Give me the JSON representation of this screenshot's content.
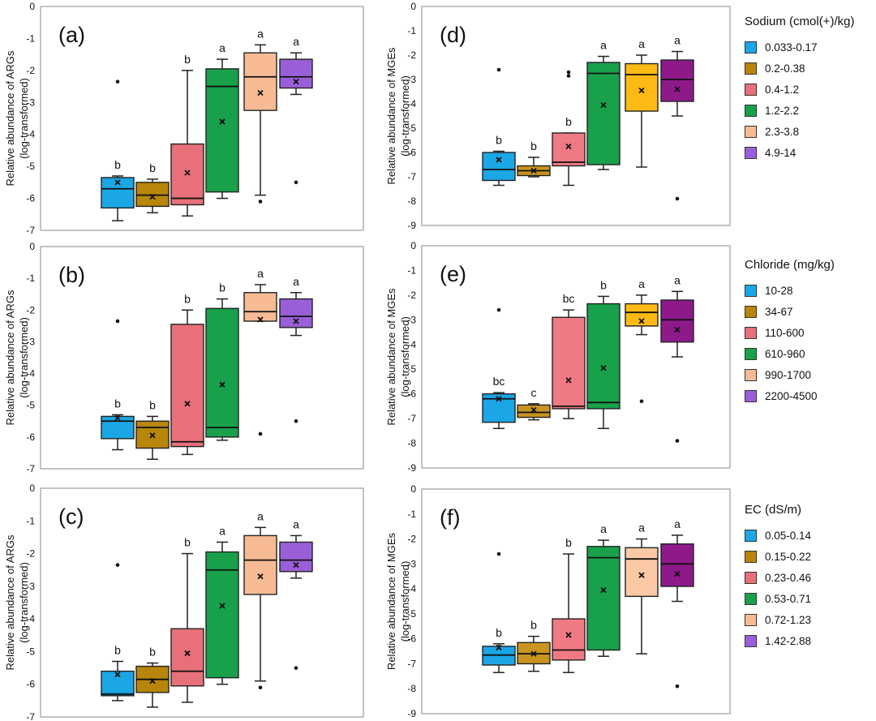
{
  "chart_data": [
    {
      "type": "box",
      "panel_label": "(a)",
      "ylabel": [
        "Relative abundance of ARGs",
        "(log-transformed)"
      ],
      "ylim": [
        -7,
        0
      ],
      "yticks": [
        0,
        -1,
        -2,
        -3,
        -4,
        -5,
        -6,
        -7
      ],
      "colors": [
        "#1BA6E5",
        "#B8860B",
        "#E8707A",
        "#19A04A",
        "#F6BB94",
        "#9A5FD8"
      ],
      "boxes": [
        {
          "whislo": -6.7,
          "q1": -6.3,
          "med": -5.7,
          "q3": -5.35,
          "whishi": -5.3,
          "mean": -5.5,
          "fliers": [
            -2.35
          ],
          "letter": "b"
        },
        {
          "whislo": -6.45,
          "q1": -6.25,
          "med": -5.9,
          "q3": -5.5,
          "whishi": -5.4,
          "mean": -5.95,
          "fliers": [],
          "letter": "b"
        },
        {
          "whislo": -6.55,
          "q1": -6.2,
          "med": -6.0,
          "q3": -4.3,
          "whishi": -2.0,
          "mean": -5.2,
          "fliers": [],
          "letter": "b"
        },
        {
          "whislo": -6.0,
          "q1": -5.8,
          "med": -2.5,
          "q3": -1.95,
          "whishi": -1.65,
          "mean": -3.6,
          "fliers": [],
          "letter": "a"
        },
        {
          "whislo": -5.9,
          "q1": -3.25,
          "med": -2.2,
          "q3": -1.45,
          "whishi": -1.2,
          "mean": -2.7,
          "fliers": [
            -6.1
          ],
          "letter": "a"
        },
        {
          "whislo": -2.75,
          "q1": -2.55,
          "med": -2.2,
          "q3": -1.65,
          "whishi": -1.45,
          "mean": -2.35,
          "fliers": [
            -5.5
          ],
          "letter": "a"
        }
      ]
    },
    {
      "type": "box",
      "panel_label": "(b)",
      "ylabel": [
        "Relative abundance of ARGs",
        "(log-transformed)"
      ],
      "ylim": [
        -7,
        0
      ],
      "yticks": [
        0,
        -1,
        -2,
        -3,
        -4,
        -5,
        -6,
        -7
      ],
      "colors": [
        "#1BA6E5",
        "#B8860B",
        "#E8707A",
        "#19A04A",
        "#F6BB94",
        "#9A5FD8"
      ],
      "boxes": [
        {
          "whislo": -6.4,
          "q1": -6.05,
          "med": -5.5,
          "q3": -5.35,
          "whishi": -5.3,
          "mean": -5.4,
          "fliers": [
            -2.35
          ],
          "letter": "b"
        },
        {
          "whislo": -6.7,
          "q1": -6.35,
          "med": -5.7,
          "q3": -5.5,
          "whishi": -5.35,
          "mean": -5.95,
          "fliers": [],
          "letter": "b"
        },
        {
          "whislo": -6.55,
          "q1": -6.3,
          "med": -6.15,
          "q3": -2.45,
          "whishi": -2.0,
          "mean": -4.95,
          "fliers": [],
          "letter": "b"
        },
        {
          "whislo": -6.1,
          "q1": -6.0,
          "med": -5.7,
          "q3": -1.95,
          "whishi": -1.65,
          "mean": -4.35,
          "fliers": [],
          "letter": "b"
        },
        {
          "whislo": -2.35,
          "q1": -2.35,
          "med": -2.05,
          "q3": -1.45,
          "whishi": -1.2,
          "mean": -2.3,
          "fliers": [
            -5.9
          ],
          "letter": "a"
        },
        {
          "whislo": -2.8,
          "q1": -2.55,
          "med": -2.2,
          "q3": -1.65,
          "whishi": -1.45,
          "mean": -2.35,
          "fliers": [
            -5.5
          ],
          "letter": "a"
        }
      ]
    },
    {
      "type": "box",
      "panel_label": "(c)",
      "ylabel": [
        "Relative abundance of ARGs",
        "(log-transformed)"
      ],
      "ylim": [
        -7,
        0
      ],
      "yticks": [
        0,
        -1,
        -2,
        -3,
        -4,
        -5,
        -6,
        -7
      ],
      "colors": [
        "#1BA6E5",
        "#B8860B",
        "#E8707A",
        "#19A04A",
        "#F6BB94",
        "#9A5FD8"
      ],
      "boxes": [
        {
          "whislo": -6.5,
          "q1": -6.35,
          "med": -6.3,
          "q3": -5.6,
          "whishi": -5.3,
          "mean": -5.7,
          "fliers": [
            -2.35
          ],
          "letter": "b"
        },
        {
          "whislo": -6.7,
          "q1": -6.25,
          "med": -5.85,
          "q3": -5.45,
          "whishi": -5.35,
          "mean": -5.9,
          "fliers": [],
          "letter": "b"
        },
        {
          "whislo": -6.55,
          "q1": -6.05,
          "med": -5.6,
          "q3": -4.3,
          "whishi": -2.0,
          "mean": -5.05,
          "fliers": [],
          "letter": "b"
        },
        {
          "whislo": -6.0,
          "q1": -5.8,
          "med": -2.5,
          "q3": -1.95,
          "whishi": -1.65,
          "mean": -3.6,
          "fliers": [],
          "letter": "a"
        },
        {
          "whislo": -5.9,
          "q1": -3.25,
          "med": -2.2,
          "q3": -1.45,
          "whishi": -1.2,
          "mean": -2.7,
          "fliers": [
            -6.1
          ],
          "letter": "a"
        },
        {
          "whislo": -2.75,
          "q1": -2.55,
          "med": -2.2,
          "q3": -1.65,
          "whishi": -1.45,
          "mean": -2.35,
          "fliers": [
            -5.5
          ],
          "letter": "a"
        }
      ]
    },
    {
      "type": "box",
      "panel_label": "(d)",
      "ylabel": [
        "Relative abundance of MGEs",
        "(log-transformed)"
      ],
      "ylim": [
        -9,
        0
      ],
      "yticks": [
        0,
        -1,
        -2,
        -3,
        -4,
        -5,
        -6,
        -7,
        -8,
        -9
      ],
      "colors": [
        "#1BA6E5",
        "#C9941F",
        "#F07A84",
        "#19A04A",
        "#FDBA15",
        "#8E1A8A"
      ],
      "boxes": [
        {
          "whislo": -7.35,
          "q1": -7.15,
          "med": -6.7,
          "q3": -6.0,
          "whishi": -5.95,
          "mean": -6.3,
          "fliers": [
            -2.6
          ],
          "letter": "b"
        },
        {
          "whislo": -7.0,
          "q1": -6.95,
          "med": -6.75,
          "q3": -6.55,
          "whishi": -6.2,
          "mean": -6.75,
          "fliers": [],
          "letter": "b"
        },
        {
          "whislo": -7.35,
          "q1": -6.55,
          "med": -6.4,
          "q3": -5.2,
          "whishi": -5.2,
          "mean": -5.75,
          "fliers": [
            -2.7,
            -2.85
          ],
          "letter": "b"
        },
        {
          "whislo": -6.7,
          "q1": -6.5,
          "med": -2.75,
          "q3": -2.3,
          "whishi": -2.05,
          "mean": -4.05,
          "fliers": [],
          "letter": "a"
        },
        {
          "whislo": -6.6,
          "q1": -4.3,
          "med": -2.8,
          "q3": -2.35,
          "whishi": -2.0,
          "mean": -3.45,
          "fliers": [],
          "letter": "a"
        },
        {
          "whislo": -4.5,
          "q1": -3.9,
          "med": -3.0,
          "q3": -2.2,
          "whishi": -1.85,
          "mean": -3.4,
          "fliers": [
            -7.9
          ],
          "letter": "a"
        }
      ]
    },
    {
      "type": "box",
      "panel_label": "(e)",
      "ylabel": [
        "Relative abundance of MGEs",
        "(log-transformed)"
      ],
      "ylim": [
        -9,
        0
      ],
      "yticks": [
        0,
        -1,
        -2,
        -3,
        -4,
        -5,
        -6,
        -7,
        -8,
        -9
      ],
      "colors": [
        "#1BA6E5",
        "#C9941F",
        "#F07A84",
        "#19A04A",
        "#FDBA15",
        "#8E1A8A"
      ],
      "boxes": [
        {
          "whislo": -7.4,
          "q1": -7.15,
          "med": -6.2,
          "q3": -6.0,
          "whishi": -5.95,
          "mean": -6.2,
          "fliers": [
            -2.6
          ],
          "letter": "bc"
        },
        {
          "whislo": -7.05,
          "q1": -6.95,
          "med": -6.75,
          "q3": -6.45,
          "whishi": -6.4,
          "mean": -6.65,
          "fliers": [],
          "letter": "c"
        },
        {
          "whislo": -7.0,
          "q1": -6.6,
          "med": -6.5,
          "q3": -2.9,
          "whishi": -2.6,
          "mean": -5.45,
          "fliers": [],
          "letter": "bc"
        },
        {
          "whislo": -7.4,
          "q1": -6.6,
          "med": -6.35,
          "q3": -2.35,
          "whishi": -2.05,
          "mean": -4.95,
          "fliers": [],
          "letter": "b"
        },
        {
          "whislo": -3.6,
          "q1": -3.25,
          "med": -2.7,
          "q3": -2.35,
          "whishi": -2.0,
          "mean": -3.05,
          "fliers": [
            -6.3
          ],
          "letter": "a"
        },
        {
          "whislo": -4.5,
          "q1": -3.9,
          "med": -3.0,
          "q3": -2.2,
          "whishi": -1.85,
          "mean": -3.4,
          "fliers": [
            -7.9
          ],
          "letter": "a"
        }
      ]
    },
    {
      "type": "box",
      "panel_label": "(f)",
      "ylabel": [
        "Relative abundance of MGEs",
        "(log-transformed)"
      ],
      "ylim": [
        -9,
        0
      ],
      "yticks": [
        0,
        -1,
        -2,
        -3,
        -4,
        -5,
        -6,
        -7,
        -8,
        -9
      ],
      "colors": [
        "#1BA6E5",
        "#C9941F",
        "#F07A84",
        "#19A04A",
        "#FBC9A6",
        "#8E1A8A"
      ],
      "boxes": [
        {
          "whislo": -7.35,
          "q1": -7.05,
          "med": -6.65,
          "q3": -6.3,
          "whishi": -6.2,
          "mean": -6.35,
          "fliers": [
            -2.6
          ],
          "letter": "b"
        },
        {
          "whislo": -7.3,
          "q1": -7.0,
          "med": -6.6,
          "q3": -6.15,
          "whishi": -5.9,
          "mean": -6.6,
          "fliers": [],
          "letter": "b"
        },
        {
          "whislo": -7.35,
          "q1": -6.85,
          "med": -6.45,
          "q3": -5.2,
          "whishi": -2.6,
          "mean": -5.85,
          "fliers": [],
          "letter": "b"
        },
        {
          "whislo": -6.7,
          "q1": -6.45,
          "med": -2.75,
          "q3": -2.3,
          "whishi": -2.05,
          "mean": -4.05,
          "fliers": [],
          "letter": "a"
        },
        {
          "whislo": -6.6,
          "q1": -4.3,
          "med": -2.8,
          "q3": -2.35,
          "whishi": -2.0,
          "mean": -3.45,
          "fliers": [],
          "letter": "a"
        },
        {
          "whislo": -4.5,
          "q1": -3.9,
          "med": -3.0,
          "q3": -2.2,
          "whishi": -1.85,
          "mean": -3.4,
          "fliers": [
            -7.9
          ],
          "letter": "a"
        }
      ]
    }
  ],
  "legends": [
    {
      "title": "Sodium (cmol(+)/kg)",
      "items": [
        {
          "label": "0.033-0.17",
          "color": "#1BA6E5"
        },
        {
          "label": "0.2-0.38",
          "color": "#B8860B"
        },
        {
          "label": "0.4-1.2",
          "color": "#E8707A"
        },
        {
          "label": "1.2-2.2",
          "color": "#19A04A"
        },
        {
          "label": "2.3-3.8",
          "color": "#F6BB94"
        },
        {
          "label": "4.9-14",
          "color": "#9A5FD8"
        }
      ]
    },
    {
      "title": "Chloride (mg/kg)",
      "items": [
        {
          "label": "10-28",
          "color": "#1BA6E5"
        },
        {
          "label": "34-67",
          "color": "#B8860B"
        },
        {
          "label": "110-600",
          "color": "#E8707A"
        },
        {
          "label": "610-960",
          "color": "#19A04A"
        },
        {
          "label": "990-1700",
          "color": "#F6BB94"
        },
        {
          "label": "2200-4500",
          "color": "#9A5FD8"
        }
      ]
    },
    {
      "title": "EC (dS/m)",
      "items": [
        {
          "label": "0.05-0.14",
          "color": "#1BA6E5"
        },
        {
          "label": "0.15-0.22",
          "color": "#B8860B"
        },
        {
          "label": "0.23-0.46",
          "color": "#E8707A"
        },
        {
          "label": "0.53-0.71",
          "color": "#19A04A"
        },
        {
          "label": "0.72-1.23",
          "color": "#F6BB94"
        },
        {
          "label": "1.42-2.88",
          "color": "#9A5FD8"
        }
      ]
    }
  ]
}
